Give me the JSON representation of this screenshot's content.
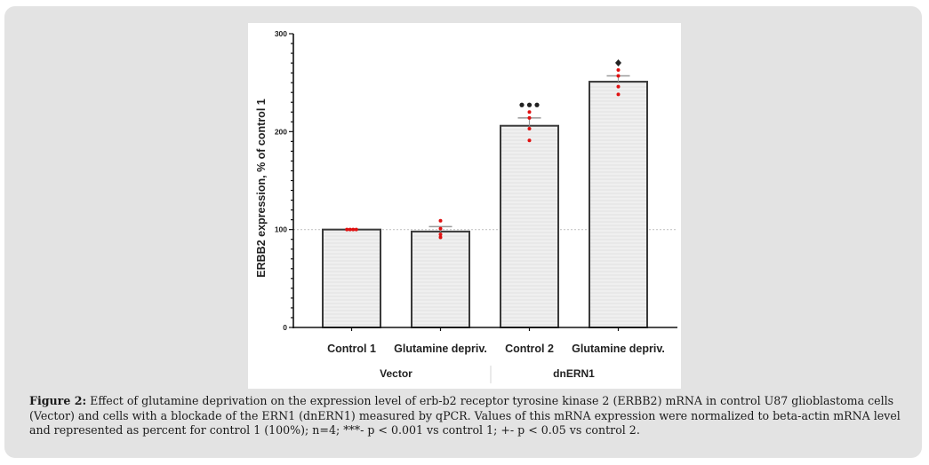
{
  "chart_data": {
    "type": "bar",
    "title": "",
    "ylabel": "ERBB2 expression, % of control 1",
    "xlabel": "",
    "ylim": [
      0,
      300
    ],
    "yticks": [
      0,
      100,
      200,
      300
    ],
    "y_minor_step": 10,
    "reference_line": 100,
    "categories": [
      "Control 1",
      "Glutamine depriv.",
      "Control 2",
      "Glutamine depriv."
    ],
    "groups": [
      {
        "label": "Vector",
        "categories": [
          0,
          1
        ]
      },
      {
        "label": "dnERN1",
        "categories": [
          2,
          3
        ]
      }
    ],
    "values": [
      100,
      98,
      206,
      251
    ],
    "error_upper": [
      100,
      103,
      214,
      257
    ],
    "points": [
      [
        100,
        100,
        100,
        100
      ],
      [
        109,
        101,
        95,
        92
      ],
      [
        220,
        214,
        203,
        191
      ],
      [
        263,
        257,
        246,
        238
      ]
    ],
    "annotations": [
      "",
      "",
      "***",
      "+"
    ],
    "colors": {
      "bar_fill": "#efefef",
      "bar_edge": "#3a3a3a",
      "point": "#e01010",
      "annotation": "#222222",
      "reference_line": "#c8c8c8"
    }
  },
  "caption": {
    "label": "Figure 2:",
    "text": " Effect of glutamine deprivation on the expression level of erb-b2 receptor tyrosine kinase 2 (ERBB2) mRNA in control U87 glioblastoma cells (Vector) and cells with a blockade of the ERN1 (dnERN1) measured by qPCR. Values of this mRNA expression were normalized to beta-actin mRNA level and represented as percent for control 1 (100%); n=4; ***- p < 0.001 vs control 1; +- p < 0.05 vs control 2."
  }
}
